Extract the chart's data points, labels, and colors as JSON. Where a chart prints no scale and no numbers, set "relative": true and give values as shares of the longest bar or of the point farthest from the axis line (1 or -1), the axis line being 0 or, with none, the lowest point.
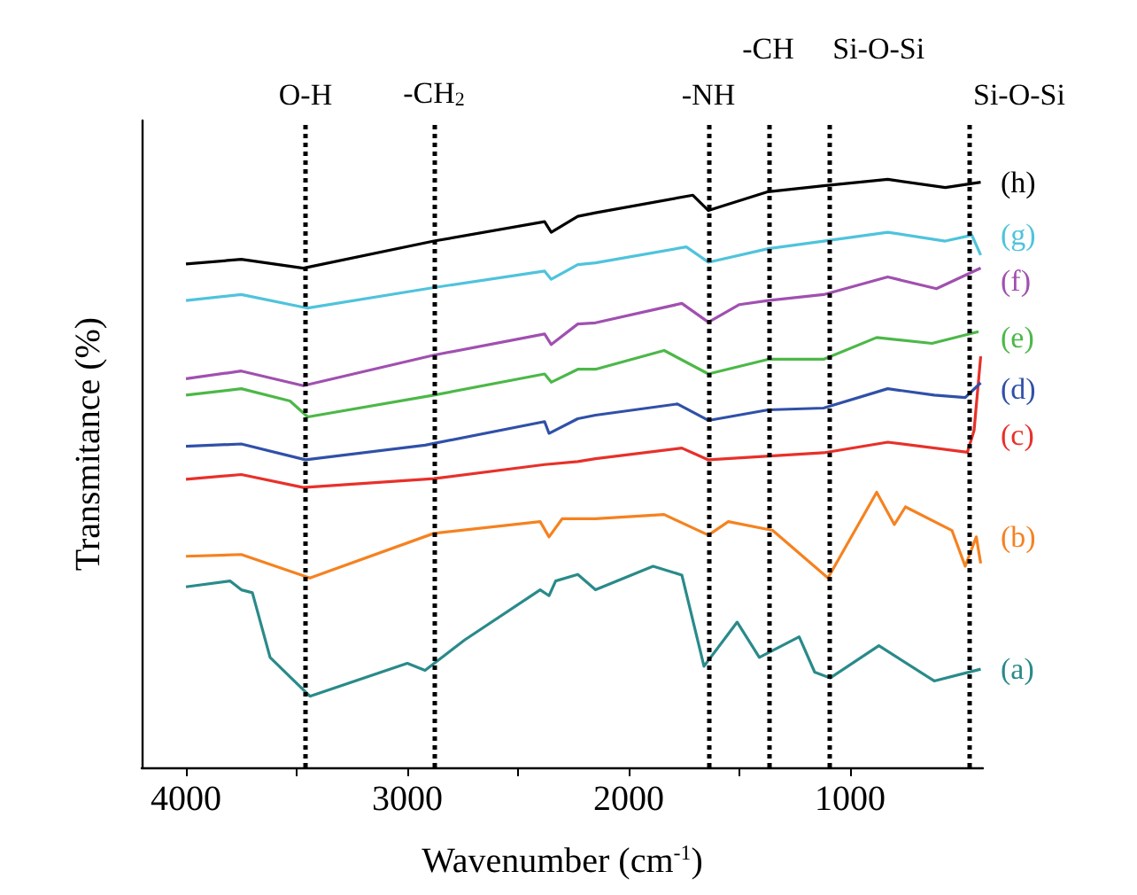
{
  "chart_data": {
    "type": "line",
    "relative": true,
    "xlabel": "Wavenumber (cm$^{-1}$)",
    "ylabel": "Transmitance (%)",
    "xlim": [
      4200,
      400
    ],
    "xticks": [
      4000,
      {
        "value": 3500,
        "label": null
      },
      3000,
      {
        "value": 2500,
        "label": null
      },
      2000,
      {
        "value": 1500,
        "label": null
      },
      1000
    ],
    "grid": false,
    "legend": false,
    "marker": "none",
    "line_style": "solid",
    "ref_lines": [
      {
        "axis": "x",
        "value": 3460,
        "label": "O-H",
        "color": "#000000",
        "line_style": "dotted"
      },
      {
        "axis": "x",
        "value": 2880,
        "label": "-CH$_{2}$",
        "color": "#000000",
        "line_style": "dotted"
      },
      {
        "axis": "x",
        "value": 1640,
        "label": "-NH",
        "color": "#000000",
        "line_style": "dotted"
      },
      {
        "axis": "x",
        "value": 1370,
        "label": "-CH",
        "color": "#000000",
        "line_style": "dotted"
      },
      {
        "axis": "x",
        "value": 1095,
        "label": "Si-O-Si",
        "color": "#000000",
        "line_style": "dotted"
      },
      {
        "axis": "x",
        "value": 460,
        "label": "Si-O-Si",
        "color": "#000000",
        "line_style": "dotted"
      }
    ],
    "series": [
      {
        "name": "(a)",
        "color": "#2a8a8a",
        "x": [
          4000,
          3800,
          3750,
          3700,
          3620,
          3440,
          3000,
          2920,
          2740,
          2400,
          2360,
          2330,
          2230,
          2150,
          1890,
          1760,
          1660,
          1510,
          1410,
          1230,
          1160,
          1090,
          870,
          620,
          410
        ],
        "values": [
          0.307,
          0.317,
          0.302,
          0.297,
          0.187,
          0.121,
          0.177,
          0.165,
          0.217,
          0.302,
          0.292,
          0.317,
          0.328,
          0.302,
          0.342,
          0.327,
          0.172,
          0.247,
          0.187,
          0.222,
          0.162,
          0.152,
          0.207,
          0.147,
          0.167
        ]
      },
      {
        "name": "(b)",
        "color": "#f58220",
        "x": [
          4000,
          3750,
          3440,
          2880,
          2400,
          2360,
          2300,
          2150,
          1840,
          1640,
          1550,
          1350,
          1100,
          880,
          800,
          750,
          540,
          480,
          430,
          410
        ],
        "values": [
          0.359,
          0.362,
          0.322,
          0.398,
          0.418,
          0.392,
          0.423,
          0.423,
          0.43,
          0.395,
          0.418,
          0.403,
          0.322,
          0.468,
          0.413,
          0.443,
          0.403,
          0.342,
          0.392,
          0.347
        ]
      },
      {
        "name": "(c)",
        "color": "#e8302a",
        "x": [
          4000,
          3750,
          3470,
          2880,
          2380,
          2230,
          2150,
          1760,
          1640,
          1120,
          830,
          470,
          440,
          410
        ],
        "values": [
          0.49,
          0.498,
          0.476,
          0.491,
          0.515,
          0.52,
          0.525,
          0.543,
          0.523,
          0.535,
          0.553,
          0.536,
          0.573,
          0.699
        ]
      },
      {
        "name": "(d)",
        "color": "#3050a8",
        "x": [
          4000,
          3750,
          3460,
          2920,
          2380,
          2360,
          2230,
          2150,
          1780,
          1640,
          1370,
          1120,
          830,
          620,
          480,
          410
        ],
        "values": [
          0.546,
          0.55,
          0.523,
          0.548,
          0.588,
          0.568,
          0.593,
          0.599,
          0.618,
          0.59,
          0.608,
          0.611,
          0.644,
          0.633,
          0.629,
          0.654
        ]
      },
      {
        "name": "(e)",
        "color": "#4cb848",
        "x": [
          4000,
          3750,
          3530,
          3450,
          2880,
          2380,
          2350,
          2230,
          2150,
          1840,
          1640,
          1370,
          1120,
          880,
          630,
          420
        ],
        "values": [
          0.633,
          0.644,
          0.623,
          0.596,
          0.633,
          0.669,
          0.655,
          0.677,
          0.677,
          0.709,
          0.669,
          0.694,
          0.694,
          0.731,
          0.721,
          0.741
        ]
      },
      {
        "name": "(f)",
        "color": "#a050b0",
        "x": [
          4000,
          3750,
          3470,
          2880,
          2380,
          2350,
          2230,
          2150,
          1760,
          1640,
          1500,
          1370,
          1120,
          830,
          610,
          410
        ],
        "values": [
          0.661,
          0.674,
          0.649,
          0.701,
          0.737,
          0.719,
          0.754,
          0.756,
          0.789,
          0.757,
          0.787,
          0.794,
          0.804,
          0.834,
          0.814,
          0.849
        ]
      },
      {
        "name": "(g)",
        "color": "#4fc3dc",
        "x": [
          4000,
          3750,
          3450,
          2880,
          2380,
          2350,
          2230,
          2150,
          1740,
          1640,
          1370,
          1120,
          830,
          570,
          450,
          410
        ],
        "values": [
          0.794,
          0.804,
          0.781,
          0.816,
          0.844,
          0.83,
          0.855,
          0.858,
          0.885,
          0.859,
          0.882,
          0.895,
          0.91,
          0.895,
          0.905,
          0.871
        ]
      },
      {
        "name": "(h)",
        "color": "#000000",
        "x": [
          4000,
          3750,
          3470,
          2880,
          2380,
          2350,
          2230,
          2150,
          1710,
          1640,
          1370,
          1120,
          830,
          570,
          410
        ],
        "values": [
          0.856,
          0.864,
          0.849,
          0.895,
          0.928,
          0.91,
          0.937,
          0.943,
          0.973,
          0.947,
          0.979,
          0.989,
          1.0,
          0.986,
          0.995
        ]
      }
    ]
  }
}
